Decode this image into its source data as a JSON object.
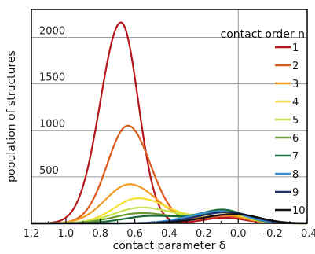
{
  "chart_data": {
    "type": "line",
    "title": "",
    "xlabel": "contact parameter δ",
    "ylabel": "population of structures",
    "xlim": [
      1.2,
      -0.4
    ],
    "ylim": [
      0,
      2300
    ],
    "x_ticks": [
      "1.2",
      "1.0",
      "0.8",
      "0.6",
      "0.4",
      "0.2",
      "0.0",
      "-0.2",
      "-0.4"
    ],
    "y_ticks": [
      "500",
      "1000",
      "1500",
      "2000"
    ],
    "x_reversed": true,
    "grid": true,
    "legend": {
      "title": "contact order n",
      "position": "top-right"
    },
    "series": [
      {
        "name": "1",
        "color": "#b5161b",
        "peak_x": 0.68,
        "peak_y": 2160,
        "width_left": 0.12,
        "width_right": 0.1,
        "tail": 60
      },
      {
        "name": "2",
        "color": "#dd5a1b",
        "peak_x": 0.64,
        "peak_y": 1050,
        "width_left": 0.12,
        "width_right": 0.13,
        "tail": 80
      },
      {
        "name": "3",
        "color": "#f29a23",
        "peak_x": 0.63,
        "peak_y": 420,
        "width_left": 0.14,
        "width_right": 0.16,
        "tail": 90
      },
      {
        "name": "4",
        "color": "#f6df2c",
        "peak_x": 0.58,
        "peak_y": 270,
        "width_left": 0.14,
        "width_right": 0.18,
        "tail": 110
      },
      {
        "name": "5",
        "color": "#c5e34a",
        "peak_x": 0.56,
        "peak_y": 170,
        "width_left": 0.16,
        "width_right": 0.2,
        "tail": 120
      },
      {
        "name": "6",
        "color": "#6a9a32",
        "peak_x": 0.56,
        "peak_y": 110,
        "width_left": 0.16,
        "width_right": 0.2,
        "tail": 130
      },
      {
        "name": "7",
        "color": "#1d6b3a",
        "peak_x": 0.5,
        "peak_y": 80,
        "width_left": 0.16,
        "width_right": 0.24,
        "tail": 130
      },
      {
        "name": "8",
        "color": "#3a8fd6",
        "peak_x": 0.1,
        "peak_y": 130,
        "width_left": 0.18,
        "width_right": 0.14,
        "tail": 0
      },
      {
        "name": "9",
        "color": "#1a2e6e",
        "peak_x": 0.06,
        "peak_y": 120,
        "width_left": 0.18,
        "width_right": 0.14,
        "tail": 0
      },
      {
        "name": "10",
        "color": "#111111",
        "peak_x": 0.02,
        "peak_y": 100,
        "width_left": 0.18,
        "width_right": 0.14,
        "tail": 0
      }
    ]
  }
}
